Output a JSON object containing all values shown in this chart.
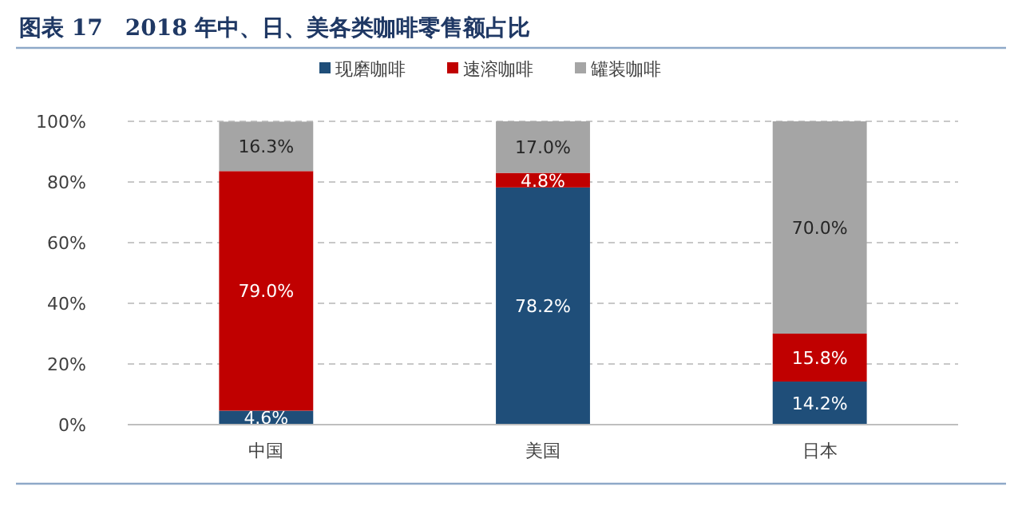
{
  "chart_data": {
    "type": "bar",
    "title": "图表 17　2018 年中、日、美各类咖啡零售额占比",
    "categories": [
      "中国",
      "美国",
      "日本"
    ],
    "stacked": true,
    "series": [
      {
        "name": "现磨咖啡",
        "color": "#1f4e79",
        "values": [
          4.6,
          78.2,
          14.2
        ],
        "value_labels": [
          "4.6%",
          "78.2%",
          "14.2%"
        ]
      },
      {
        "name": "速溶咖啡",
        "color": "#c00000",
        "values": [
          79.0,
          4.8,
          15.8
        ],
        "value_labels": [
          "79.0%",
          "4.8%",
          "15.8%"
        ]
      },
      {
        "name": "罐装咖啡",
        "color": "#a5a5a5",
        "values": [
          16.3,
          17.0,
          70.0
        ],
        "value_labels": [
          "16.3%",
          "17.0%",
          "70.0%"
        ]
      }
    ],
    "ylim": [
      0,
      100
    ],
    "yticks": [
      {
        "value": 0,
        "label": "0%"
      },
      {
        "value": 20,
        "label": "20%"
      },
      {
        "value": 40,
        "label": "40%"
      },
      {
        "value": 60,
        "label": "60%"
      },
      {
        "value": 80,
        "label": "80%"
      },
      {
        "value": 100,
        "label": "100%"
      }
    ],
    "grid": "y",
    "legend": "top"
  }
}
